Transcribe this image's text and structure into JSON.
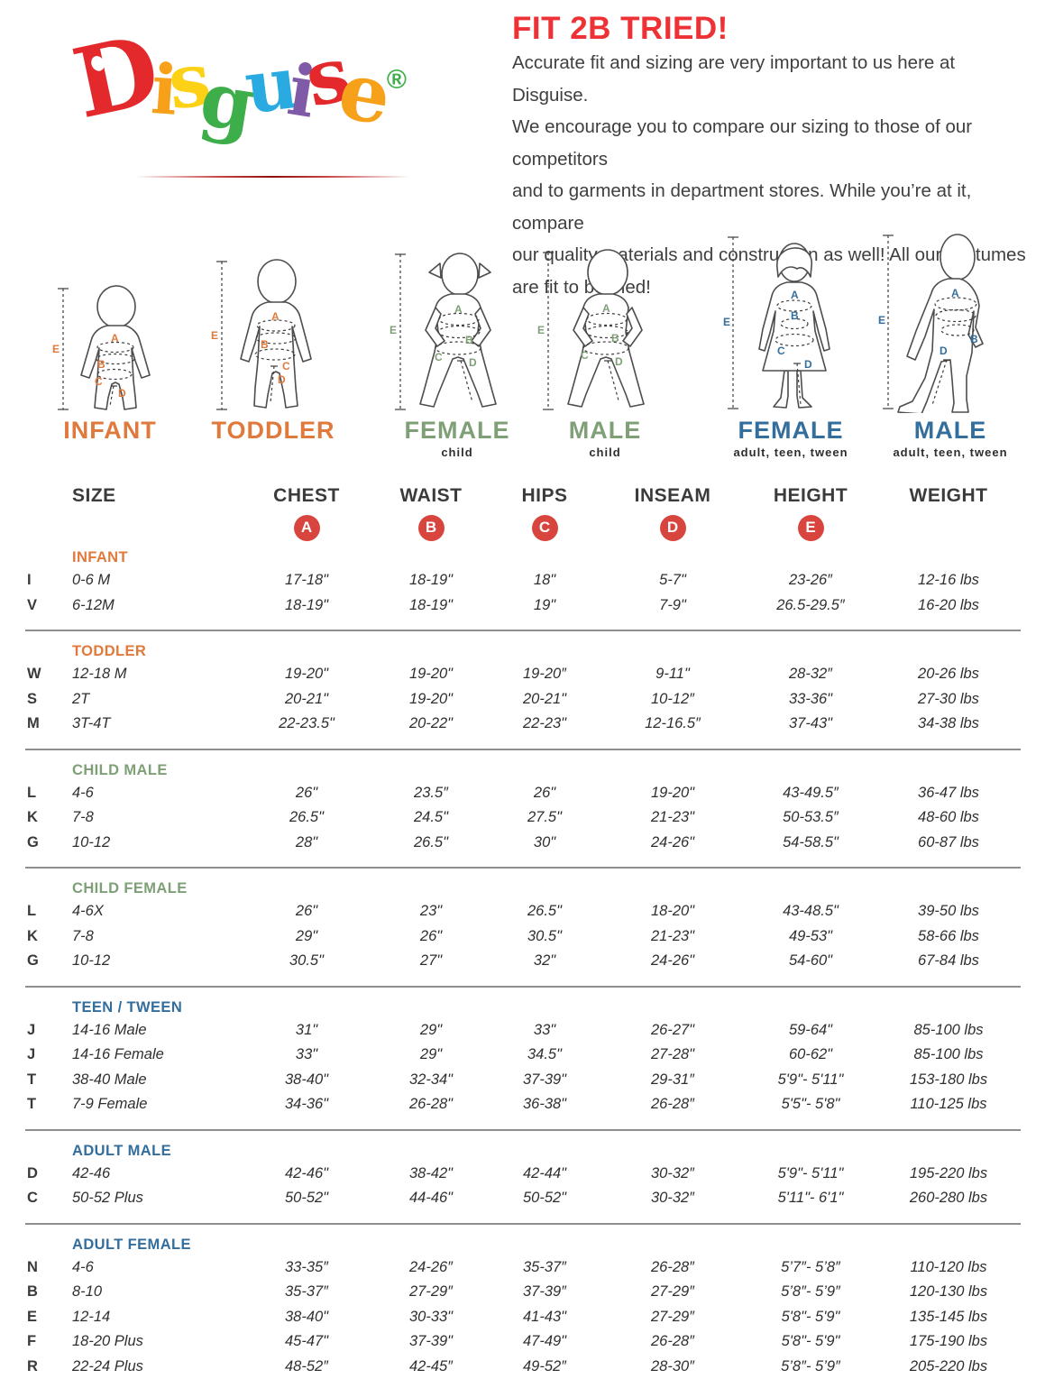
{
  "logo": {
    "letters": [
      {
        "ch": "D",
        "color": "#e3292b"
      },
      {
        "ch": "i",
        "color": "#f7a11a"
      },
      {
        "ch": "s",
        "color": "#fdd116"
      },
      {
        "ch": "g",
        "color": "#3dae49"
      },
      {
        "ch": "u",
        "color": "#29abe2"
      },
      {
        "ch": "i",
        "color": "#7e5aa7"
      },
      {
        "ch": "s",
        "color": "#e3292b"
      },
      {
        "ch": "e",
        "color": "#f7a11a"
      },
      {
        "ch": "®",
        "color": "#3dae49"
      }
    ]
  },
  "intro": {
    "title": "FIT 2B TRIED!",
    "title_color": "#ee3134",
    "lines": [
      "Accurate fit and sizing are very important to us here at Disguise.",
      "We encourage you to compare our sizing to those of our competitors",
      "and to garments in department stores. While you’re at it, compare",
      "our quality materials and construction as well! All our costumes",
      "are fit to be tried!"
    ]
  },
  "measures": [
    "A",
    "B",
    "C",
    "D",
    "E"
  ],
  "figures": [
    {
      "name": "INFANT",
      "sub": "",
      "color": "#e0793c"
    },
    {
      "name": "TODDLER",
      "sub": "",
      "color": "#e0793c"
    },
    {
      "name": "FEMALE",
      "sub": "child",
      "color": "#7fa077"
    },
    {
      "name": "MALE",
      "sub": "child",
      "color": "#7fa077"
    },
    {
      "name": "FEMALE",
      "sub": "adult, teen, tween",
      "color": "#336e9c"
    },
    {
      "name": "MALE",
      "sub": "adult, teen, tween",
      "color": "#336e9c"
    }
  ],
  "table": {
    "columns": [
      "SIZE",
      "CHEST",
      "WAIST",
      "HIPS",
      "INSEAM",
      "HEIGHT",
      "WEIGHT"
    ],
    "badge_color": "#d8453e",
    "sections": [
      {
        "title": "INFANT",
        "color": "#e0793c",
        "rows": [
          {
            "letter": "I",
            "size": "0-6 M",
            "cells": [
              "17-18\"",
              "18-19\"",
              "18\"",
              "5-7\"",
              "23-26″",
              "12-16 lbs"
            ]
          },
          {
            "letter": "V",
            "size": "6-12M",
            "cells": [
              "18-19\"",
              "18-19\"",
              "19\"",
              "7-9\"",
              "26.5-29.5″",
              "16-20 lbs"
            ]
          }
        ]
      },
      {
        "title": "TODDLER",
        "color": "#e0793c",
        "rows": [
          {
            "letter": "W",
            "size": "12-18 M",
            "cells": [
              "19-20\"",
              "19-20\"",
              "19-20″",
              "9-11\"",
              "28-32″",
              "20-26 lbs"
            ]
          },
          {
            "letter": "S",
            "size": "2T",
            "cells": [
              "20-21\"",
              "19-20\"",
              "20-21\"",
              "10-12″",
              "33-36\"",
              "27-30 lbs"
            ]
          },
          {
            "letter": "M",
            "size": "3T-4T",
            "cells": [
              "22-23.5\"",
              "20-22\"",
              "22-23\"",
              "12-16.5″",
              "37-43\"",
              "34-38 lbs"
            ]
          }
        ]
      },
      {
        "title": "CHILD MALE",
        "color": "#7fa077",
        "rows": [
          {
            "letter": "L",
            "size": "4-6",
            "cells": [
              "26\"",
              "23.5″",
              "26\"",
              "19-20\"",
              "43-49.5″",
              "36-47 lbs"
            ]
          },
          {
            "letter": "K",
            "size": "7-8",
            "cells": [
              "26.5\"",
              "24.5\"",
              "27.5\"",
              "21-23\"",
              "50-53.5″",
              "48-60 lbs"
            ]
          },
          {
            "letter": "G",
            "size": "10-12",
            "cells": [
              "28\"",
              "26.5\"",
              "30\"",
              "24-26\"",
              "54-58.5\"",
              "60-87 lbs"
            ]
          }
        ]
      },
      {
        "title": "CHILD FEMALE",
        "color": "#7fa077",
        "rows": [
          {
            "letter": "L",
            "size": "4-6X",
            "cells": [
              "26\"",
              "23\"",
              "26.5\"",
              "18-20\"",
              "43-48.5\"",
              "39-50 lbs"
            ]
          },
          {
            "letter": "K",
            "size": "7-8",
            "cells": [
              "29\"",
              "26\"",
              "30.5\"",
              "21-23\"",
              "49-53\"",
              "58-66 lbs"
            ]
          },
          {
            "letter": "G",
            "size": "10-12",
            "cells": [
              "30.5\"",
              "27\"",
              "32\"",
              "24-26\"",
              "54-60\"",
              "67-84 lbs"
            ]
          }
        ]
      },
      {
        "title": "TEEN / TWEEN",
        "color": "#336e9c",
        "rows": [
          {
            "letter": "J",
            "size": "14-16 Male",
            "cells": [
              "31\"",
              "29\"",
              "33\"",
              "26-27\"",
              "59-64\"",
              "85-100 lbs"
            ]
          },
          {
            "letter": "J",
            "size": "14-16 Female",
            "cells": [
              "33\"",
              "29\"",
              "34.5\"",
              "27-28\"",
              "60-62\"",
              "85-100 lbs"
            ]
          },
          {
            "letter": "T",
            "size": "38-40 Male",
            "cells": [
              "38-40\"",
              "32-34\"",
              "37-39\"",
              "29-31″",
              "5'9\"- 5'11\"",
              "153-180 lbs"
            ]
          },
          {
            "letter": "T",
            "size": "7-9 Female",
            "cells": [
              "34-36\"",
              "26-28\"",
              "36-38\"",
              "26-28″",
              "5'5\"- 5'8\"",
              "110-125 lbs"
            ]
          }
        ]
      },
      {
        "title": "ADULT MALE",
        "color": "#336e9c",
        "rows": [
          {
            "letter": "D",
            "size": "42-46",
            "cells": [
              "42-46\"",
              "38-42\"",
              "42-44\"",
              "30-32″",
              "5'9\"- 5'11\"",
              "195-220 lbs"
            ]
          },
          {
            "letter": "C",
            "size": "50-52 Plus",
            "cells": [
              "50-52\"",
              "44-46\"",
              "50-52\"",
              "30-32″",
              "5'11\"- 6'1\"",
              "260-280 lbs"
            ]
          }
        ]
      },
      {
        "title": "ADULT FEMALE",
        "color": "#336e9c",
        "rows": [
          {
            "letter": "N",
            "size": "4-6",
            "cells": [
              "33-35″",
              "24-26″",
              "35-37″",
              "26-28″",
              "5’7″- 5’8″",
              "110-120 lbs"
            ]
          },
          {
            "letter": "B",
            "size": "8-10",
            "cells": [
              "35-37″",
              "27-29″",
              "37-39″",
              "27-29″",
              "5’8″- 5’9″",
              "120-130 lbs"
            ]
          },
          {
            "letter": "E",
            "size": "12-14",
            "cells": [
              "38-40\"",
              "30-33\"",
              "41-43\"",
              "27-29″",
              "5'8\"- 5'9\"",
              "135-145 lbs"
            ]
          },
          {
            "letter": "F",
            "size": "18-20 Plus",
            "cells": [
              "45-47\"",
              "37-39\"",
              "47-49\"",
              "26-28″",
              "5'8\"- 5'9\"",
              "175-190 lbs"
            ]
          },
          {
            "letter": "R",
            "size": "22-24 Plus",
            "cells": [
              "48-52″",
              "42-45″",
              "49-52″",
              "28-30″",
              "5’8″- 5’9″",
              "205-220 lbs"
            ]
          }
        ]
      }
    ]
  }
}
